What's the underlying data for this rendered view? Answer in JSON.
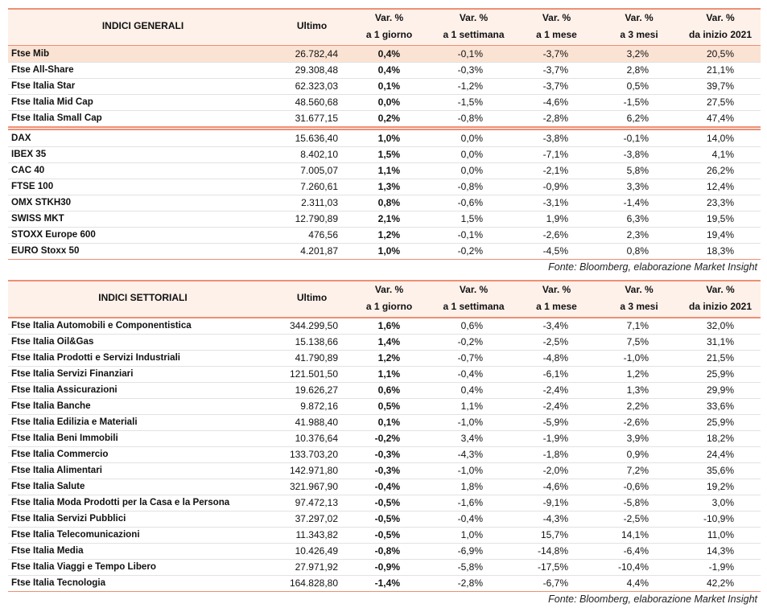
{
  "tables": [
    {
      "columns": [
        "INDICI GENERALI",
        "Ultimo",
        {
          "line1": "Var. %",
          "line2": "a 1 giorno"
        },
        {
          "line1": "Var. %",
          "line2": "a 1 settimana"
        },
        {
          "line1": "Var. %",
          "line2": "a 1 mese"
        },
        {
          "line1": "Var. %",
          "line2": "a 3 mesi"
        },
        {
          "line1": "Var. %",
          "line2": "da inizio 2021"
        }
      ],
      "groups": [
        {
          "rows": [
            [
              "Ftse Mib",
              "26.782,44",
              "0,4%",
              "-0,1%",
              "-3,7%",
              "3,2%",
              "20,5%"
            ],
            [
              "Ftse All-Share",
              "29.308,48",
              "0,4%",
              "-0,3%",
              "-3,7%",
              "2,8%",
              "21,1%"
            ],
            [
              "Ftse Italia Star",
              "62.323,03",
              "0,1%",
              "-1,2%",
              "-3,7%",
              "0,5%",
              "39,7%"
            ],
            [
              "Ftse Italia Mid Cap",
              "48.560,68",
              "0,0%",
              "-1,5%",
              "-4,6%",
              "-1,5%",
              "27,5%"
            ],
            [
              "Ftse Italia Small Cap",
              "31.677,15",
              "0,2%",
              "-0,8%",
              "-2,8%",
              "6,2%",
              "47,4%"
            ]
          ]
        },
        {
          "rows": [
            [
              "DAX",
              "15.636,40",
              "1,0%",
              "0,0%",
              "-3,8%",
              "-0,1%",
              "14,0%"
            ],
            [
              "IBEX 35",
              "8.402,10",
              "1,5%",
              "0,0%",
              "-7,1%",
              "-3,8%",
              "4,1%"
            ],
            [
              "CAC 40",
              "7.005,07",
              "1,1%",
              "0,0%",
              "-2,1%",
              "5,8%",
              "26,2%"
            ],
            [
              "FTSE 100",
              "7.260,61",
              "1,3%",
              "-0,8%",
              "-0,9%",
              "3,3%",
              "12,4%"
            ],
            [
              "OMX STKH30",
              "2.311,03",
              "0,8%",
              "-0,6%",
              "-3,1%",
              "-1,4%",
              "23,3%"
            ],
            [
              "SWISS MKT",
              "12.790,89",
              "2,1%",
              "1,5%",
              "1,9%",
              "6,3%",
              "19,5%"
            ],
            [
              "STOXX Europe 600",
              "476,56",
              "1,2%",
              "-0,1%",
              "-2,6%",
              "2,3%",
              "19,4%"
            ],
            [
              "EURO Stoxx 50",
              "4.201,87",
              "1,0%",
              "-0,2%",
              "-4,5%",
              "0,8%",
              "18,3%"
            ]
          ]
        }
      ],
      "source": "Fonte: Bloomberg, elaborazione Market Insight"
    },
    {
      "columns": [
        "INDICI SETTORIALI",
        "Ultimo",
        {
          "line1": "Var. %",
          "line2": "a 1 giorno"
        },
        {
          "line1": "Var. %",
          "line2": "a 1 settimana"
        },
        {
          "line1": "Var. %",
          "line2": "a 1 mese"
        },
        {
          "line1": "Var. %",
          "line2": "a 3 mesi"
        },
        {
          "line1": "Var. %",
          "line2": "da inizio 2021"
        }
      ],
      "groups": [
        {
          "rows": [
            [
              "Ftse Italia Automobili e Componentistica",
              "344.299,50",
              "1,6%",
              "0,6%",
              "-3,4%",
              "7,1%",
              "32,0%"
            ],
            [
              "Ftse Italia Oil&Gas",
              "15.138,66",
              "1,4%",
              "-0,2%",
              "-2,5%",
              "7,5%",
              "31,1%"
            ],
            [
              "Ftse Italia Prodotti e Servizi Industriali",
              "41.790,89",
              "1,2%",
              "-0,7%",
              "-4,8%",
              "-1,0%",
              "21,5%"
            ],
            [
              "Ftse Italia Servizi Finanziari",
              "121.501,50",
              "1,1%",
              "-0,4%",
              "-6,1%",
              "1,2%",
              "25,9%"
            ],
            [
              "Ftse Italia Assicurazioni",
              "19.626,27",
              "0,6%",
              "0,4%",
              "-2,4%",
              "1,3%",
              "29,9%"
            ],
            [
              "Ftse Italia Banche",
              "9.872,16",
              "0,5%",
              "1,1%",
              "-2,4%",
              "2,2%",
              "33,6%"
            ],
            [
              "Ftse Italia Edilizia e Materiali",
              "41.988,40",
              "0,1%",
              "-1,0%",
              "-5,9%",
              "-2,6%",
              "25,9%"
            ],
            [
              "Ftse Italia Beni Immobili",
              "10.376,64",
              "-0,2%",
              "3,4%",
              "-1,9%",
              "3,9%",
              "18,2%"
            ],
            [
              "Ftse Italia Commercio",
              "133.703,20",
              "-0,3%",
              "-4,3%",
              "-1,8%",
              "0,9%",
              "24,4%"
            ],
            [
              "Ftse Italia Alimentari",
              "142.971,80",
              "-0,3%",
              "-1,0%",
              "-2,0%",
              "7,2%",
              "35,6%"
            ],
            [
              "Ftse Italia Salute",
              "321.967,90",
              "-0,4%",
              "1,8%",
              "-4,6%",
              "-0,6%",
              "19,2%"
            ],
            [
              "Ftse Italia Moda Prodotti per la Casa e la Persona",
              "97.472,13",
              "-0,5%",
              "-1,6%",
              "-9,1%",
              "-5,8%",
              "3,0%"
            ],
            [
              "Ftse Italia Servizi Pubblici",
              "37.297,02",
              "-0,5%",
              "-0,4%",
              "-4,3%",
              "-2,5%",
              "-10,9%"
            ],
            [
              "Ftse Italia Telecomunicazioni",
              "11.343,82",
              "-0,5%",
              "1,0%",
              "15,7%",
              "14,1%",
              "11,0%"
            ],
            [
              "Ftse Italia Media",
              "10.426,49",
              "-0,8%",
              "-6,9%",
              "-14,8%",
              "-6,4%",
              "14,3%"
            ],
            [
              "Ftse Italia Viaggi e Tempo Libero",
              "27.971,92",
              "-0,9%",
              "-5,8%",
              "-17,5%",
              "-10,4%",
              "-1,9%"
            ],
            [
              "Ftse Italia Tecnologia",
              "164.828,80",
              "-1,4%",
              "-2,8%",
              "-6,7%",
              "4,4%",
              "42,2%"
            ]
          ]
        }
      ],
      "source": "Fonte: Bloomberg, elaborazione Market Insight"
    }
  ]
}
